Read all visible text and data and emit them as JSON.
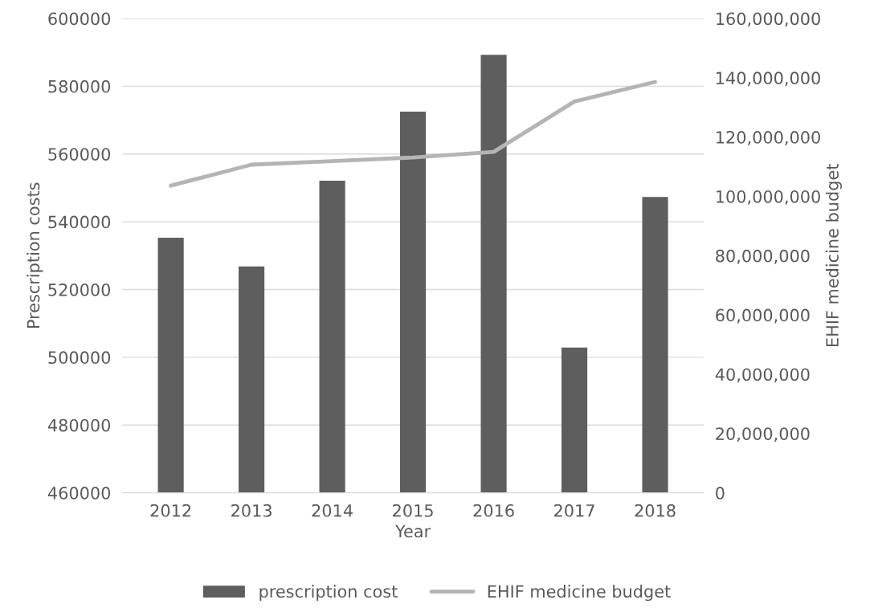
{
  "chart_data": {
    "type": "bar",
    "xlabel": "Year",
    "ylabel": "Prescription costs",
    "y2label": "EHIF medicine budget",
    "categories": [
      "2012",
      "2013",
      "2014",
      "2015",
      "2016",
      "2017",
      "2018"
    ],
    "series": [
      {
        "name": "prescription cost",
        "color": "#5e5e5e",
        "values": [
          535300,
          526800,
          552100,
          572500,
          589300,
          502900,
          547300
        ]
      },
      {
        "name": "EHIF medicine budget",
        "type": "line",
        "axis": "y2",
        "color": "#b4b4b4",
        "values": [
          103600000,
          110700000,
          111900000,
          113100000,
          115000000,
          132000000,
          138600000
        ]
      }
    ],
    "ylim": [
      460000,
      600000
    ],
    "yticks": [
      460000,
      480000,
      500000,
      520000,
      540000,
      560000,
      580000,
      600000
    ],
    "y2lim": [
      0,
      160000000
    ],
    "y2ticks": [
      {
        "value": 0,
        "label": "0"
      },
      {
        "value": 20000000,
        "label": "20,000,000"
      },
      {
        "value": 40000000,
        "label": "40,000,000"
      },
      {
        "value": 60000000,
        "label": "60,000,000"
      },
      {
        "value": 80000000,
        "label": "80,000,000"
      },
      {
        "value": 100000000,
        "label": "100,000,000"
      },
      {
        "value": 120000000,
        "label": "120,000,000"
      },
      {
        "value": 140000000,
        "label": "140,000,000"
      },
      {
        "value": 160000000,
        "label": "160,000,000"
      }
    ],
    "grid": "y",
    "legend": "bottom"
  }
}
